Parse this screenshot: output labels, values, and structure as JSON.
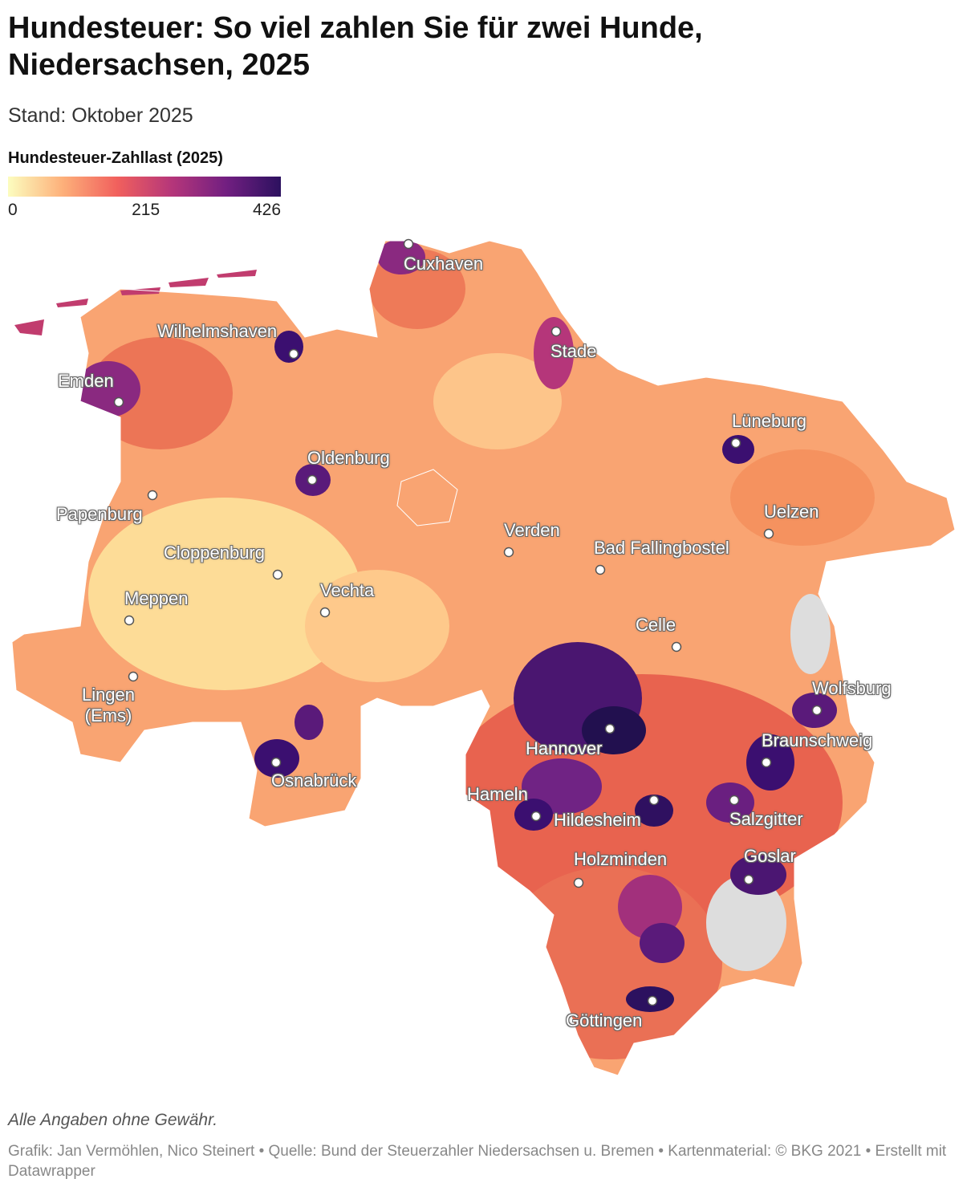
{
  "header": {
    "title": "Hundesteuer: So viel zahlen Sie für zwei Hunde, Niedersachsen, 2025",
    "subtitle": "Stand: Oktober 2025"
  },
  "legend": {
    "title": "Hundesteuer-Zahllast (2025)",
    "range": [
      0,
      426
    ],
    "ticks": [
      0,
      215,
      426
    ],
    "colors": [
      "#fcfdbf",
      "#fdb07a",
      "#f1605d",
      "#b5367a",
      "#721f81",
      "#2c115f"
    ]
  },
  "cities": [
    "Cuxhaven",
    "Wilhelmshaven",
    "Stade",
    "Emden",
    "Lüneburg",
    "Oldenburg",
    "Papenburg",
    "Uelzen",
    "Verden",
    "Bad Fallingbostel",
    "Cloppenburg",
    "Vechta",
    "Meppen",
    "Celle",
    "Lingen (Ems)",
    "Wolfsburg",
    "Braunschweig",
    "Hannover",
    "Osnabrück",
    "Hameln",
    "Hildesheim",
    "Salzgitter",
    "Goslar",
    "Holzminden",
    "Göttingen"
  ],
  "footer": {
    "note": "Alle Angaben ohne Gewähr.",
    "credit": "Grafik: Jan Vermöhlen, Nico Steinert • Quelle: Bund der Steuerzahler Niedersachsen u. Bremen • Kartenmaterial: © BKG 2021  • Erstellt mit Datawrapper"
  }
}
